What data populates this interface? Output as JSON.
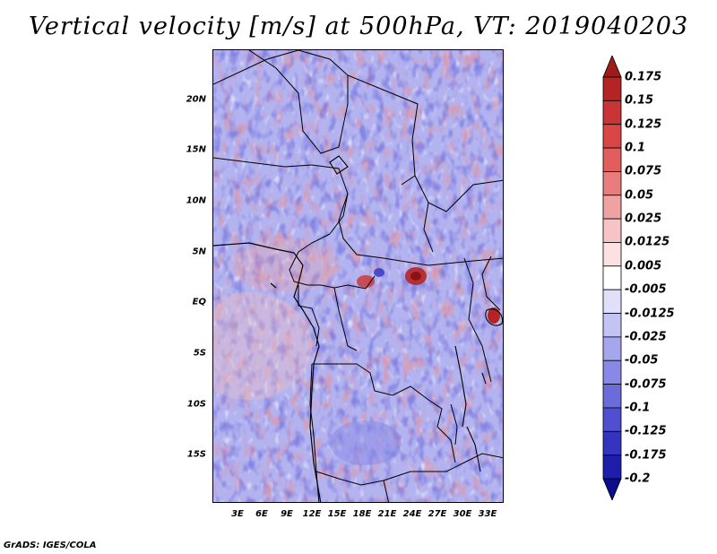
{
  "title": "Vertical velocity [m/s] at 500hPa, VT: 2019040203",
  "credit": "GrADS: IGES/COLA",
  "latitude_labels": [
    "20N",
    "15N",
    "10N",
    "5N",
    "EQ",
    "5S",
    "10S",
    "15S"
  ],
  "longitude_labels": [
    "3E",
    "6E",
    "9E",
    "12E",
    "15E",
    "18E",
    "21E",
    "24E",
    "27E",
    "30E",
    "33E"
  ],
  "colorbar": {
    "labels": [
      "0.175",
      "0.15",
      "0.125",
      "0.1",
      "0.075",
      "0.05",
      "0.025",
      "0.0125",
      "0.005",
      "-0.005",
      "-0.0125",
      "-0.025",
      "-0.05",
      "-0.075",
      "-0.1",
      "-0.125",
      "-0.175",
      "-0.2"
    ],
    "colors": [
      "#9e1b1b",
      "#b52424",
      "#c93434",
      "#d94646",
      "#e15e5e",
      "#e87d7d",
      "#f0a2a2",
      "#f6c4c4",
      "#fbe1e1",
      "#ffffff",
      "#e0e0fa",
      "#c3c3f4",
      "#a6a6ee",
      "#8888e6",
      "#6b6bdc",
      "#4f4fcf",
      "#3434c0",
      "#1e1eab",
      "#0c0c8f"
    ]
  },
  "chart_data": {
    "type": "heatmap",
    "title": "Vertical velocity [m/s] at 500hPa, VT: 2019040203",
    "variable": "Vertical velocity",
    "units": "m/s",
    "level": "500hPa",
    "valid_time": "2019040203",
    "lon_range": [
      0,
      35
    ],
    "lat_range": [
      -20,
      25
    ],
    "lon_ticks": [
      3,
      6,
      9,
      12,
      15,
      18,
      21,
      24,
      27,
      30,
      33
    ],
    "lat_ticks": [
      20,
      15,
      10,
      5,
      0,
      -5,
      -10,
      -15
    ],
    "contour_levels": [
      -0.2,
      -0.175,
      -0.125,
      -0.1,
      -0.075,
      -0.05,
      -0.025,
      -0.0125,
      -0.005,
      0.005,
      0.0125,
      0.025,
      0.05,
      0.075,
      0.1,
      0.125,
      0.15,
      0.175
    ],
    "features": [
      {
        "name": "strong ascent cell",
        "lon": 24,
        "lat": 3,
        "value": 0.15
      },
      {
        "name": "strong ascent cell",
        "lon": 33,
        "lat": -1,
        "value": 0.15
      },
      {
        "name": "ascent cluster",
        "lon": 17,
        "lat": 2.5,
        "value": 0.1
      }
    ]
  }
}
